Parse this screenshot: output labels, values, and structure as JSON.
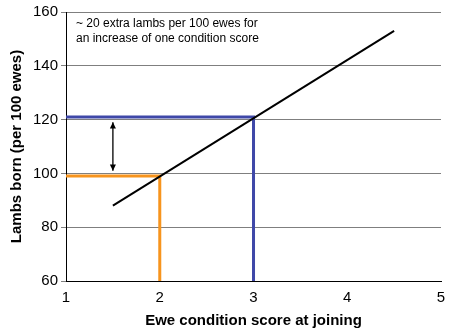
{
  "chart_data": {
    "type": "line",
    "x_label": "Ewe condition score at joining",
    "y_label": "Lambs born (per 100 ewes)",
    "annotation": [
      "~ 20 extra lambs per 100 ewes for",
      "an increase of one condition score"
    ],
    "series": [
      {
        "color": "#000000",
        "x": [
          1.5,
          4.5
        ],
        "values": [
          88,
          153
        ],
        "line_style": "solid"
      },
      {
        "color": "#f7941d",
        "x": [
          1,
          2,
          2
        ],
        "values": [
          99,
          99,
          60
        ],
        "line_style": "solid"
      },
      {
        "color": "#3f48a8",
        "x": [
          1,
          3,
          3
        ],
        "values": [
          121,
          121,
          60
        ],
        "line_style": "solid"
      },
      {
        "color": "#000000",
        "x": [
          1.5,
          1.5
        ],
        "values": [
          101,
          119
        ],
        "line_style": "double_arrow"
      }
    ],
    "xlim": [
      1,
      5
    ],
    "xticks": [
      1,
      2,
      3,
      4,
      5
    ],
    "ylim": [
      60,
      160
    ],
    "yticks": [
      60,
      80,
      100,
      120,
      140,
      160
    ],
    "grid": true
  }
}
